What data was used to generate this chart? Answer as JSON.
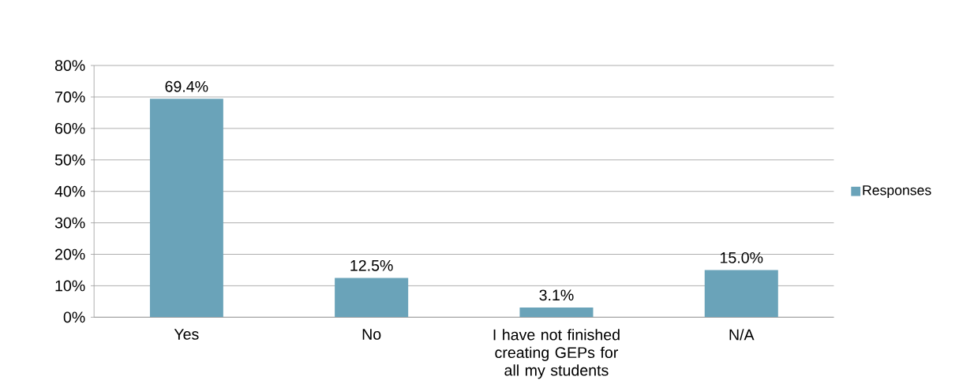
{
  "chart_data": {
    "type": "bar",
    "categories": [
      "Yes",
      "No",
      "I have not finished creating GEPs for all my students",
      "N/A"
    ],
    "series": [
      {
        "name": "Responses",
        "color": "#6aa3b9",
        "values": [
          69.4,
          12.5,
          3.1,
          15.0
        ],
        "value_labels": [
          "69.4%",
          "12.5%",
          "3.1%",
          "15.0%"
        ]
      }
    ],
    "ylim": [
      0,
      80
    ],
    "yticks": [
      {
        "value": 0,
        "label": "0%"
      },
      {
        "value": 10,
        "label": "10%"
      },
      {
        "value": 20,
        "label": "20%"
      },
      {
        "value": 30,
        "label": "30%"
      },
      {
        "value": 40,
        "label": "40%"
      },
      {
        "value": 50,
        "label": "50%"
      },
      {
        "value": 60,
        "label": "60%"
      },
      {
        "value": 70,
        "label": "70%"
      },
      {
        "value": 80,
        "label": "80%"
      }
    ],
    "grid": "y",
    "legend": "right"
  }
}
